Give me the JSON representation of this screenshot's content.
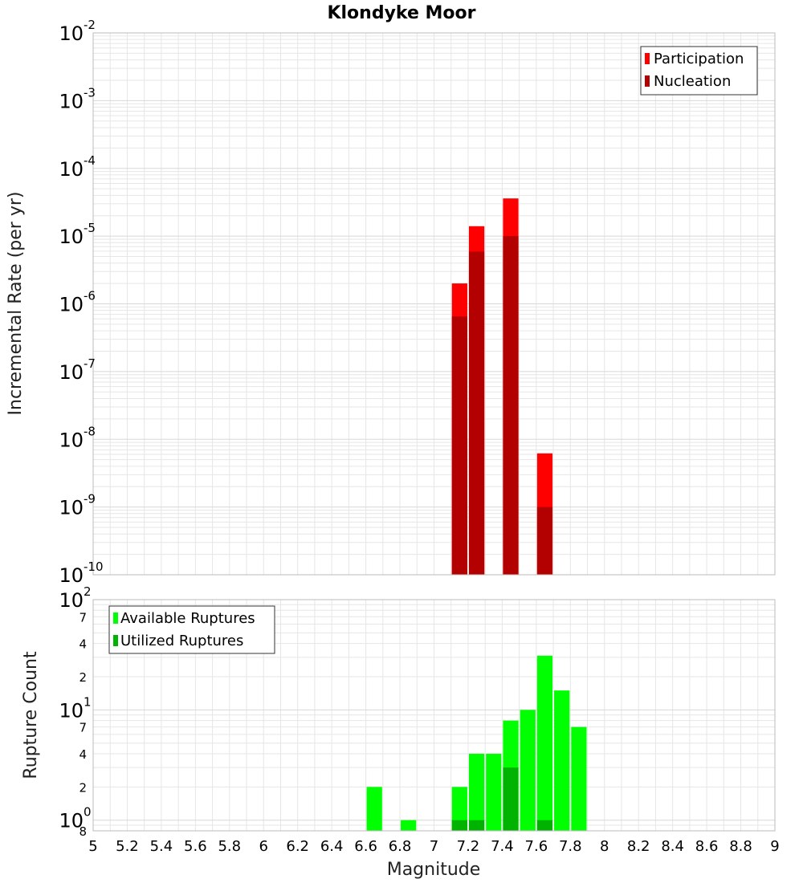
{
  "title": "Klondyke Moor",
  "colors": {
    "participation": "#ff0000",
    "nucleation": "#b30000",
    "available": "#00ff00",
    "utilized": "#00b300",
    "grid": "#e6e6e6",
    "frame": "#bbbbbb"
  },
  "chart_data": [
    {
      "type": "bar",
      "name": "rates",
      "title": "Klondyke Moor",
      "xlabel": "Magnitude",
      "ylabel": "Incremental Rate (per yr)",
      "yscale": "log",
      "xlim": [
        5,
        9
      ],
      "ylim": [
        1e-10,
        0.01
      ],
      "bin_width": 0.1,
      "y_ticks": [
        {
          "base": "10",
          "exp": "-10",
          "value": 1e-10
        },
        {
          "base": "10",
          "exp": "-9",
          "value": 1e-09
        },
        {
          "base": "10",
          "exp": "-8",
          "value": 1e-08
        },
        {
          "base": "10",
          "exp": "-7",
          "value": 1e-07
        },
        {
          "base": "10",
          "exp": "-6",
          "value": 1e-06
        },
        {
          "base": "10",
          "exp": "-5",
          "value": 1e-05
        },
        {
          "base": "10",
          "exp": "-4",
          "value": 0.0001
        },
        {
          "base": "10",
          "exp": "-3",
          "value": 0.001
        },
        {
          "base": "10",
          "exp": "-2",
          "value": 0.01
        }
      ],
      "legend": {
        "position": "top-right",
        "entries": [
          "Participation",
          "Nucleation"
        ]
      },
      "x": [
        7.15,
        7.25,
        7.45,
        7.65
      ],
      "series": [
        {
          "name": "Participation",
          "values": [
            2e-06,
            1.4e-05,
            3.6e-05,
            6.2e-09
          ]
        },
        {
          "name": "Nucleation",
          "values": [
            6.5e-07,
            5.9e-06,
            1e-05,
            1e-09
          ]
        }
      ]
    },
    {
      "type": "bar",
      "name": "counts",
      "xlabel": "Magnitude",
      "ylabel": "Rupture Count",
      "yscale": "log",
      "xlim": [
        5,
        9
      ],
      "ylim": [
        0.8,
        100
      ],
      "bin_width": 0.1,
      "y_ticks": [
        {
          "base": "10",
          "exp": "0",
          "value": 1
        },
        {
          "base": "10",
          "exp": "1",
          "value": 10
        },
        {
          "base": "10",
          "exp": "2",
          "value": 100
        }
      ],
      "y_minor_ticks": [
        {
          "label": "8",
          "value": 0.8
        },
        {
          "label": "2",
          "value": 2
        },
        {
          "label": "4",
          "value": 4
        },
        {
          "label": "7",
          "value": 7
        },
        {
          "label": "2",
          "value": 20
        },
        {
          "label": "4",
          "value": 40
        },
        {
          "label": "7",
          "value": 70
        }
      ],
      "legend": {
        "position": "top-left",
        "entries": [
          "Available Ruptures",
          "Utilized Ruptures"
        ]
      },
      "x": [
        6.65,
        6.85,
        7.15,
        7.25,
        7.35,
        7.45,
        7.55,
        7.65,
        7.75,
        7.85
      ],
      "series": [
        {
          "name": "Available Ruptures",
          "values": [
            2,
            1,
            2,
            4,
            4,
            8,
            10,
            31,
            15,
            7
          ]
        },
        {
          "name": "Utilized Ruptures",
          "values": [
            0,
            0,
            1,
            1,
            0,
            3,
            0,
            1,
            0,
            0
          ]
        }
      ]
    }
  ],
  "x_ticks": [
    "5",
    "5.2",
    "5.4",
    "5.6",
    "5.8",
    "6",
    "6.2",
    "6.4",
    "6.6",
    "6.8",
    "7",
    "7.2",
    "7.4",
    "7.6",
    "7.8",
    "8",
    "8.2",
    "8.4",
    "8.6",
    "8.8",
    "9"
  ]
}
